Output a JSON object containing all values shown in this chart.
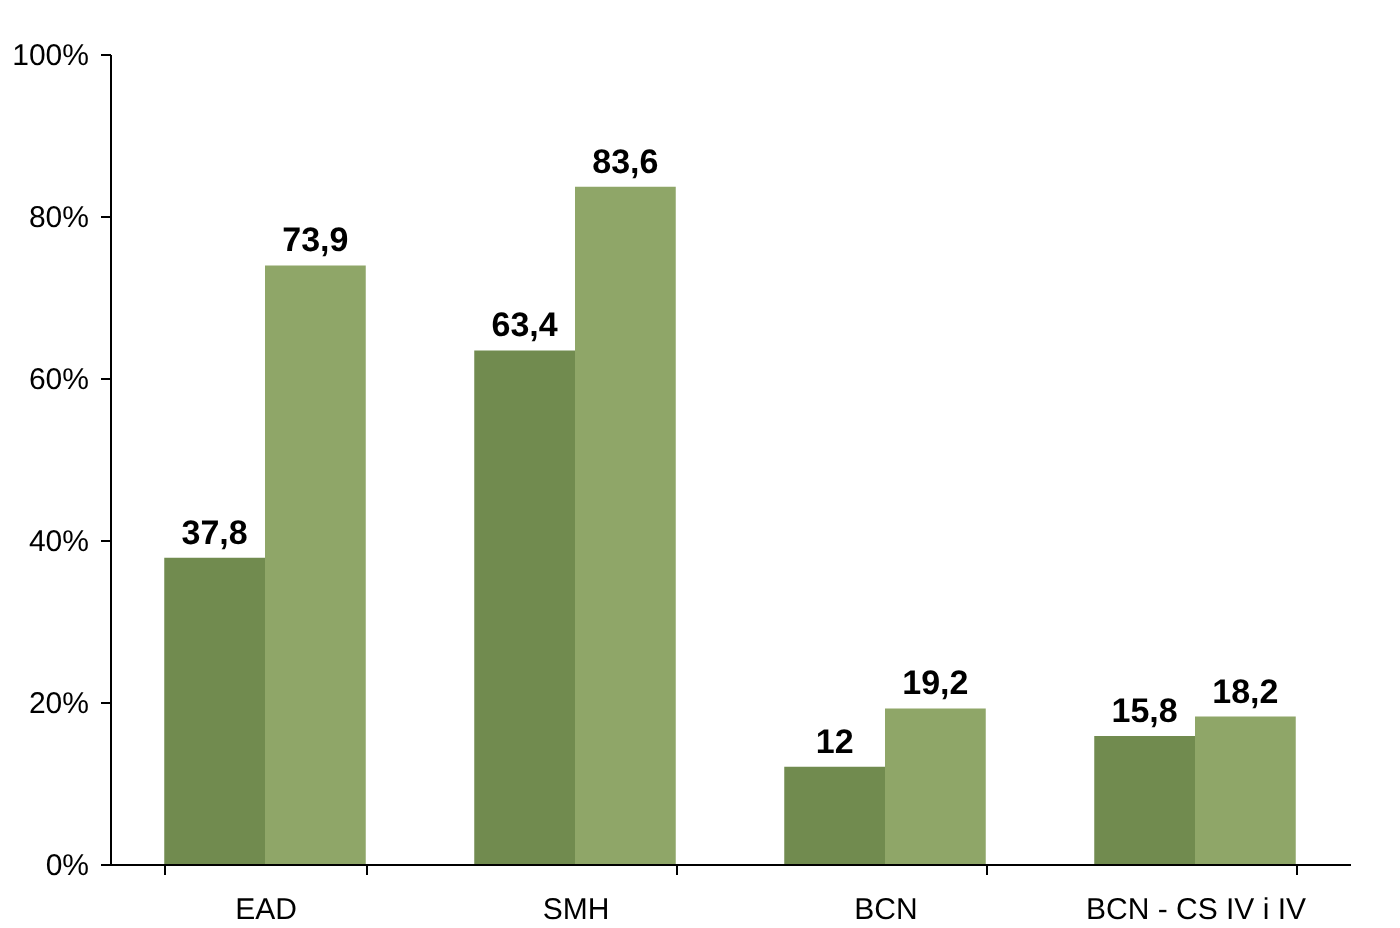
{
  "chart_data": {
    "type": "bar",
    "categories": [
      "EAD",
      "SMH",
      "BCN",
      "BCN - CS IV i IV"
    ],
    "series": [
      {
        "color": "#718b4f",
        "values": [
          37.8,
          63.4,
          12,
          15.8
        ]
      },
      {
        "color": "#8fa668",
        "values": [
          73.9,
          83.6,
          19.2,
          18.2
        ]
      }
    ],
    "ylim": [
      0,
      100
    ],
    "yticks": [
      {
        "value": 0,
        "label": "0%"
      },
      {
        "value": 20,
        "label": "20%"
      },
      {
        "value": 40,
        "label": "40%"
      },
      {
        "value": 60,
        "label": "60%"
      },
      {
        "value": 80,
        "label": "80%"
      },
      {
        "value": 100,
        "label": "100%"
      }
    ],
    "value_labels": [
      [
        "37,8",
        "63,4",
        "12",
        "15,8"
      ],
      [
        "73,9",
        "83,6",
        "19,2",
        "18,2"
      ]
    ],
    "grid": false,
    "legend": false
  }
}
